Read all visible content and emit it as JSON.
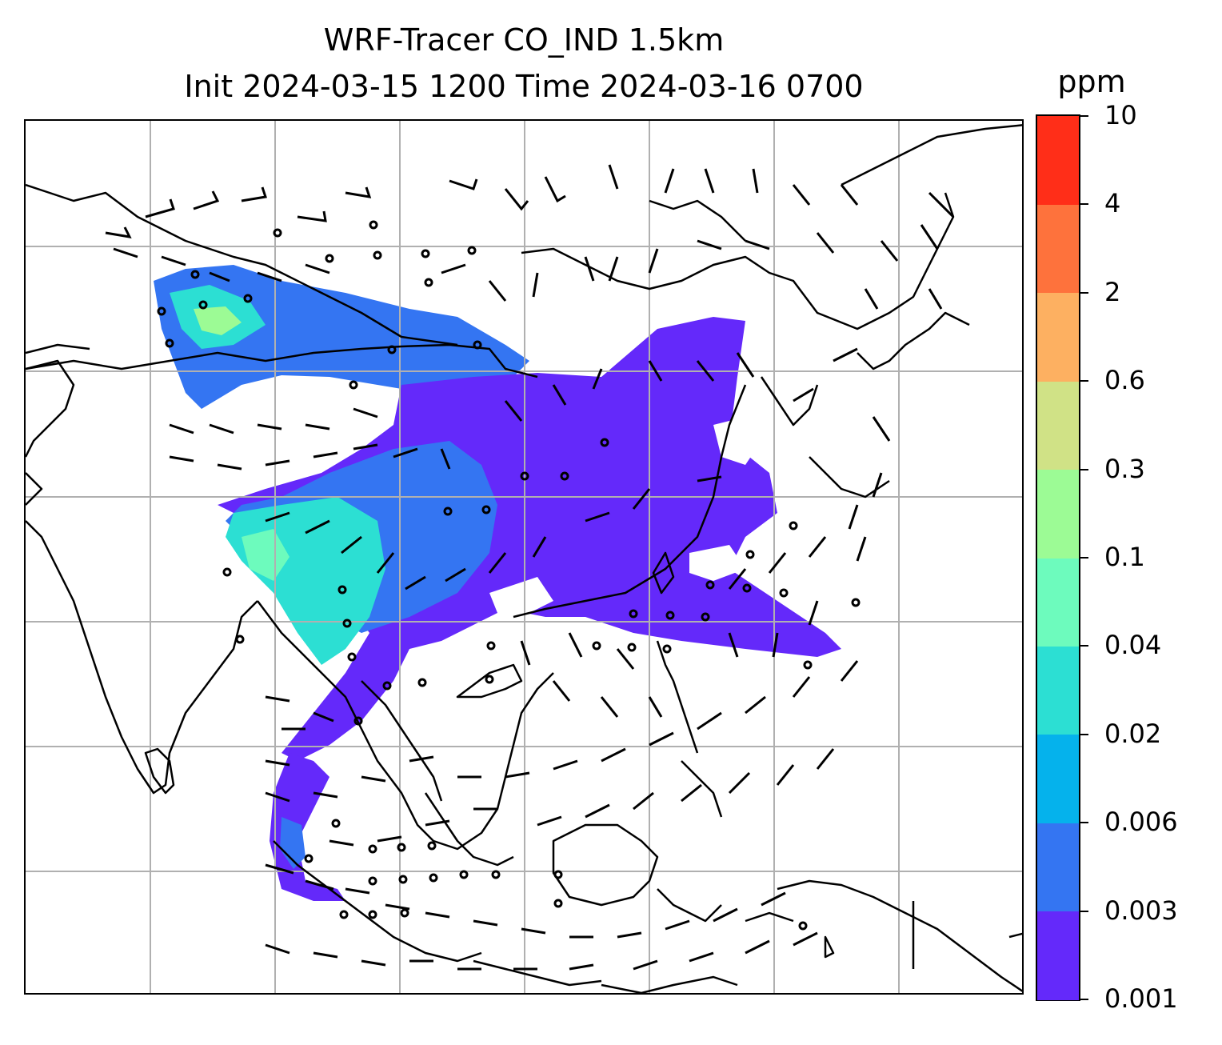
{
  "title": {
    "line1": "WRF-Tracer CO_IND 1.5km",
    "line2": "Init 2024-03-15 1200 Time 2024-03-16 0700"
  },
  "colorbar": {
    "unit": "ppm",
    "levels": [
      "0.001",
      "0.003",
      "0.006",
      "0.02",
      "0.04",
      "0.1",
      "0.3",
      "0.6",
      "2",
      "4",
      "10"
    ],
    "colors": [
      "#6429fa",
      "#3475f2",
      "#05b2ec",
      "#2cdfd3",
      "#6dfbbd",
      "#9cfb95",
      "#d0e286",
      "#fdb061",
      "#fe723c",
      "#ff2e18"
    ]
  },
  "map": {
    "gridlines": "on",
    "coastline_color": "#000000",
    "grid_color": "#b0b0b0",
    "overlay": "wind barbs (knots) with calm circles"
  }
}
